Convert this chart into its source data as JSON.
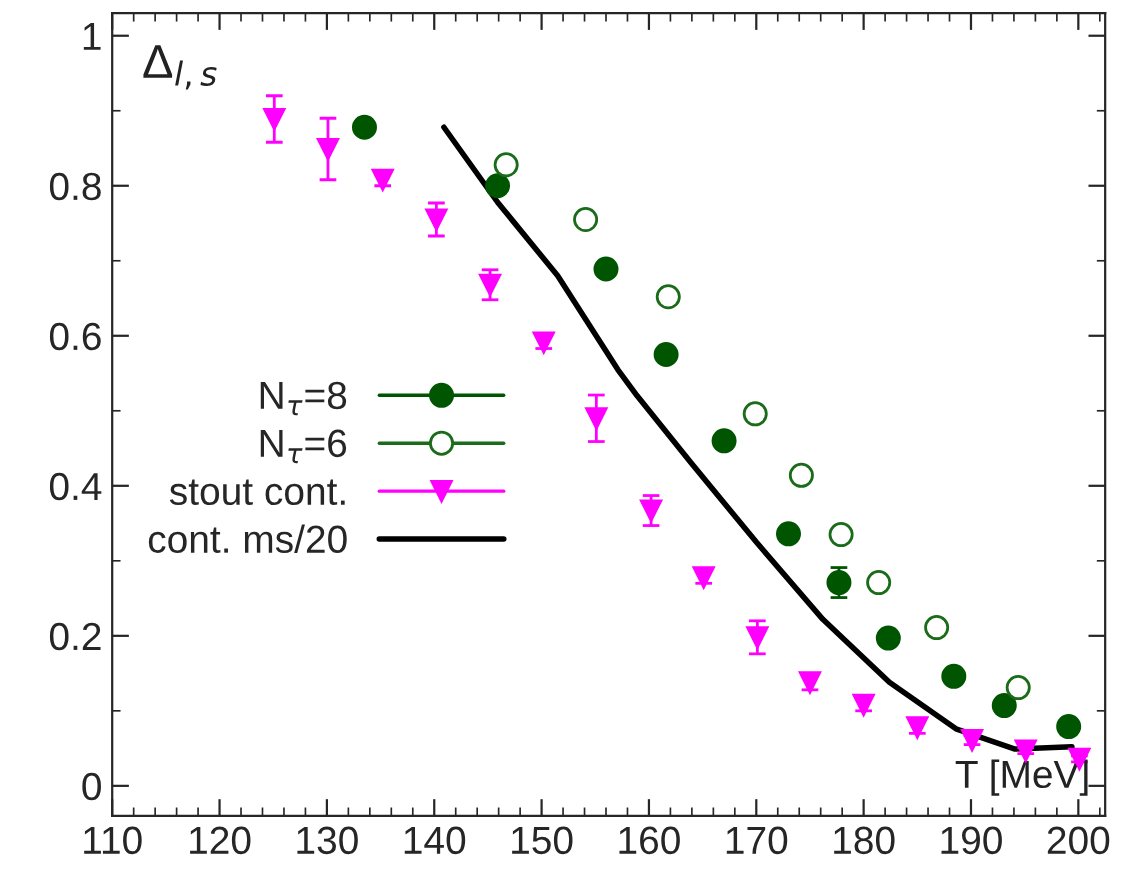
{
  "chart_data": {
    "type": "scatter",
    "xlabel": "T [MeV]",
    "ylabel": "Δ$_{l,s}$",
    "xlim": [
      110,
      202.5
    ],
    "ylim": [
      -0.04,
      1.03
    ],
    "xticks": [
      110,
      120,
      130,
      140,
      150,
      160,
      170,
      180,
      190,
      200
    ],
    "yticks": [
      0,
      0.2,
      0.4,
      0.6,
      0.8,
      1
    ],
    "legend": "left",
    "grid": false,
    "series": [
      {
        "name": "N$_{τ}$=8",
        "marker": "circle",
        "color": "#005500",
        "x": [
          133.5,
          145.9,
          156.0,
          161.6,
          167.0,
          173.0,
          177.7,
          182.3,
          188.4,
          193.1,
          199.1
        ],
        "values": [
          0.878,
          0.8,
          0.689,
          0.575,
          0.46,
          0.336,
          0.271,
          0.197,
          0.146,
          0.107,
          0.079
        ],
        "errors": [
          null,
          null,
          null,
          null,
          null,
          null,
          0.02,
          null,
          null,
          null,
          null
        ]
      },
      {
        "name": "N$_{τ}$=6",
        "marker": "circle",
        "color": "#1a6b1a",
        "x": [
          146.7,
          154.1,
          161.8,
          169.9,
          174.2,
          177.9,
          181.4,
          186.8,
          194.4
        ],
        "values": [
          0.828,
          0.755,
          0.652,
          0.496,
          0.414,
          0.335,
          0.271,
          0.211,
          0.131
        ],
        "errors": [
          0.01,
          null,
          0.01,
          0.01,
          0.01,
          0.01,
          0.01,
          0.01,
          null
        ]
      },
      {
        "name": "stout cont.",
        "marker": "triangle",
        "color": "#ff00ff",
        "x": [
          125.1,
          130.1,
          135.2,
          140.2,
          145.2,
          150.2,
          155.1,
          160.2,
          165.1,
          170.1,
          175.0,
          180.0,
          185.0,
          190.1,
          195.1,
          200.1
        ],
        "values": [
          0.889,
          0.849,
          0.808,
          0.755,
          0.668,
          0.591,
          0.49,
          0.367,
          0.278,
          0.198,
          0.138,
          0.108,
          0.078,
          0.061,
          0.047,
          0.036
        ],
        "errors": [
          0.031,
          0.041,
          0.008,
          0.022,
          0.02,
          0.008,
          0.031,
          0.02,
          0.008,
          0.022,
          0.01,
          0.008,
          0.008,
          0.006,
          0.004,
          0.004
        ]
      },
      {
        "name": "cont. ms/20",
        "type": "line",
        "marker": "none",
        "color": "#000000",
        "x": [
          140.9,
          145.9,
          151.5,
          157.1,
          158.9,
          163.9,
          170.0,
          176.2,
          182.4,
          188.6,
          194.1,
          199.4
        ],
        "values": [
          0.878,
          0.778,
          0.68,
          0.555,
          0.52,
          0.431,
          0.325,
          0.222,
          0.138,
          0.076,
          0.049,
          0.052
        ]
      }
    ]
  }
}
